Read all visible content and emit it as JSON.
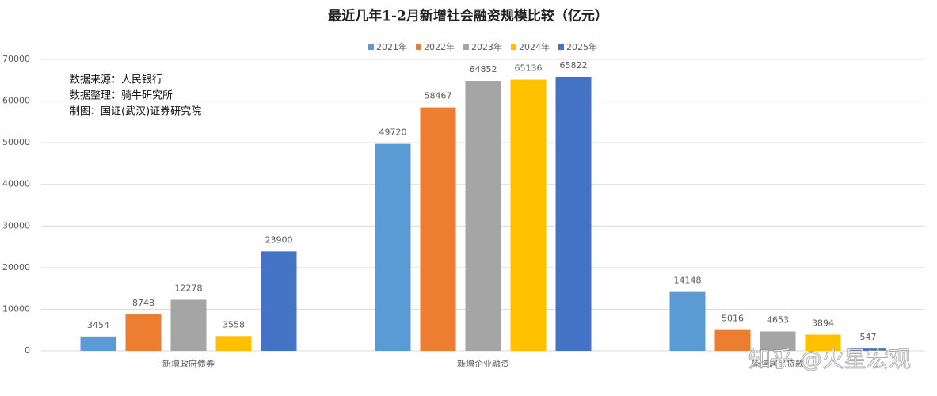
{
  "chart_data": {
    "type": "bar",
    "title": "最近几年1-2月新增社会融资规模比较（亿元）",
    "categories": [
      "新增政府债券",
      "新增企业融资",
      "新增居民贷款"
    ],
    "series": [
      {
        "name": "2021年",
        "color": "#5b9bd5",
        "values": [
          3454,
          49720,
          14148
        ]
      },
      {
        "name": "2022年",
        "color": "#ed7d31",
        "values": [
          8748,
          58467,
          5016
        ]
      },
      {
        "name": "2023年",
        "color": "#a5a5a5",
        "values": [
          12278,
          64852,
          4653
        ]
      },
      {
        "name": "2024年",
        "color": "#ffc000",
        "values": [
          3558,
          65136,
          3894
        ]
      },
      {
        "name": "2025年",
        "color": "#4472c4",
        "values": [
          23900,
          65822,
          547
        ]
      }
    ],
    "ylim": [
      0,
      70000
    ],
    "yticks": [
      0,
      10000,
      20000,
      30000,
      40000,
      50000,
      60000,
      70000
    ],
    "grid": true,
    "legend": "top",
    "annotations": [
      "数据来源：人民银行",
      "数据整理：骑牛研究所",
      "制图：国证(武汉)证券研究院"
    ],
    "watermark": "知乎 @火星宏观"
  }
}
